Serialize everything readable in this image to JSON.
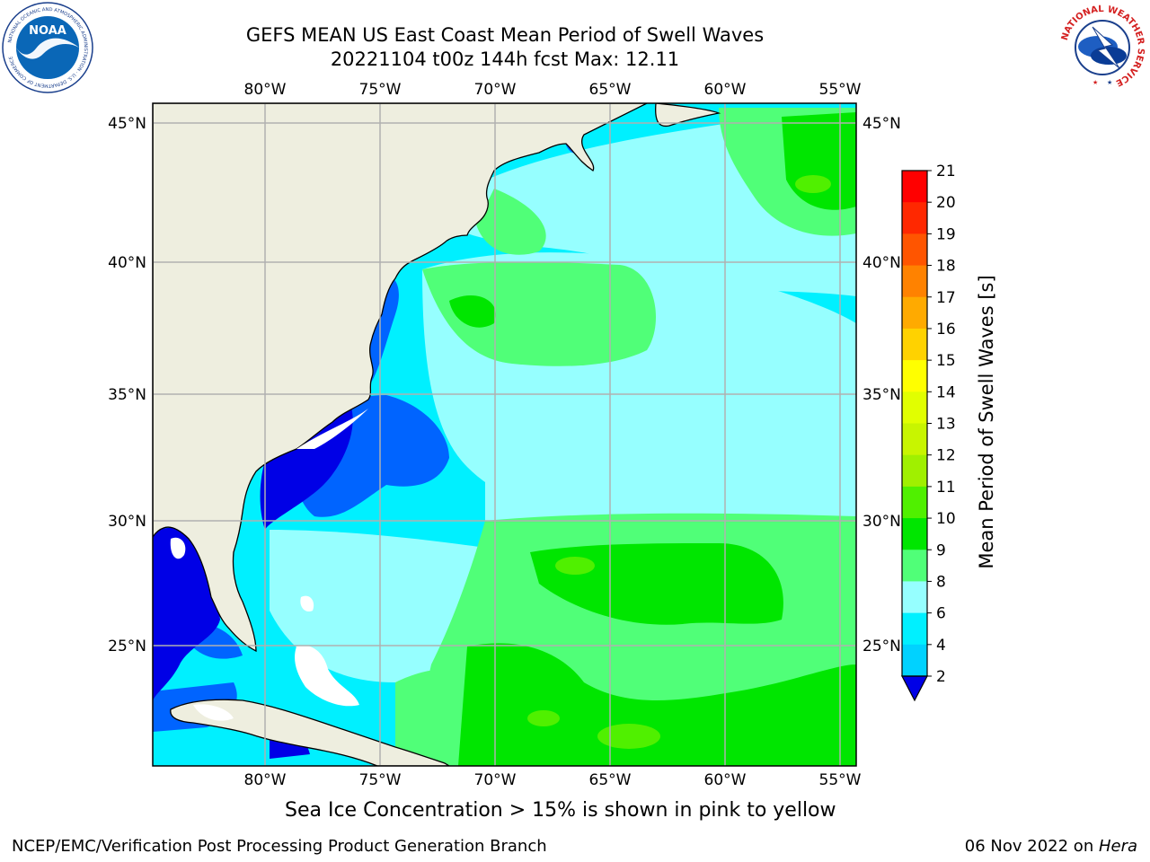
{
  "title": {
    "line1": "GEFS MEAN US East Coast Mean Period of Swell Waves",
    "line2": "20221104 t00z 144h fcst   Max: 12.11"
  },
  "map": {
    "lon_labels": [
      "80°W",
      "75°W",
      "70°W",
      "65°W",
      "60°W",
      "55°W"
    ],
    "lat_labels": [
      "45°N",
      "40°N",
      "35°N",
      "30°N",
      "25°N"
    ],
    "land_color": "#eeeedf",
    "grid_color": "#b0b0b0"
  },
  "colorbar": {
    "label": "Mean Period of Swell Waves [s]",
    "ticks": [
      "2",
      "4",
      "6",
      "8",
      "9",
      "10",
      "11",
      "12",
      "13",
      "14",
      "15",
      "16",
      "17",
      "18",
      "19",
      "20",
      "21"
    ],
    "colors": [
      "#0000e6",
      "#0064ff",
      "#00d2ff",
      "#00f0ff",
      "#96ffff",
      "#50ff78",
      "#00e600",
      "#50f000",
      "#a0f000",
      "#c8f500",
      "#e1ff00",
      "#ffff00",
      "#ffd200",
      "#ffaa00",
      "#ff8200",
      "#ff5500",
      "#ff2800",
      "#ff0000"
    ]
  },
  "logos": {
    "noaa_text": "NOAA",
    "noaa_ring": "NATIONAL OCEANIC AND ATMOSPHERIC ADMINISTRATION · U.S. DEPARTMENT OF COMMERCE",
    "nws_ring": "NATIONAL WEATHER SERVICE"
  },
  "captions": {
    "sea_ice": "Sea Ice Concentration > 15% is shown in pink to yellow",
    "footer_left": "NCEP/EMC/Verification Post Processing Product Generation Branch",
    "footer_date": "06 Nov 2022 on ",
    "footer_machine": "Hera"
  }
}
